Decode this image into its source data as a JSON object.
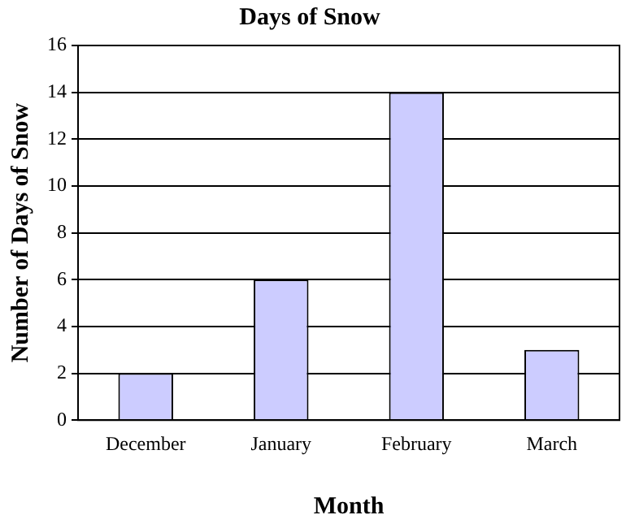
{
  "chart_data": {
    "type": "bar",
    "title": "Days of Snow",
    "xlabel": "Month",
    "ylabel": "Number of Days of Snow",
    "categories": [
      "December",
      "January",
      "February",
      "March"
    ],
    "values": [
      2,
      6,
      14,
      3
    ],
    "color": "#ccccff",
    "ylim": [
      0,
      16
    ],
    "yticks": [
      0,
      2,
      4,
      6,
      8,
      10,
      12,
      14,
      16
    ],
    "grid": "y"
  }
}
